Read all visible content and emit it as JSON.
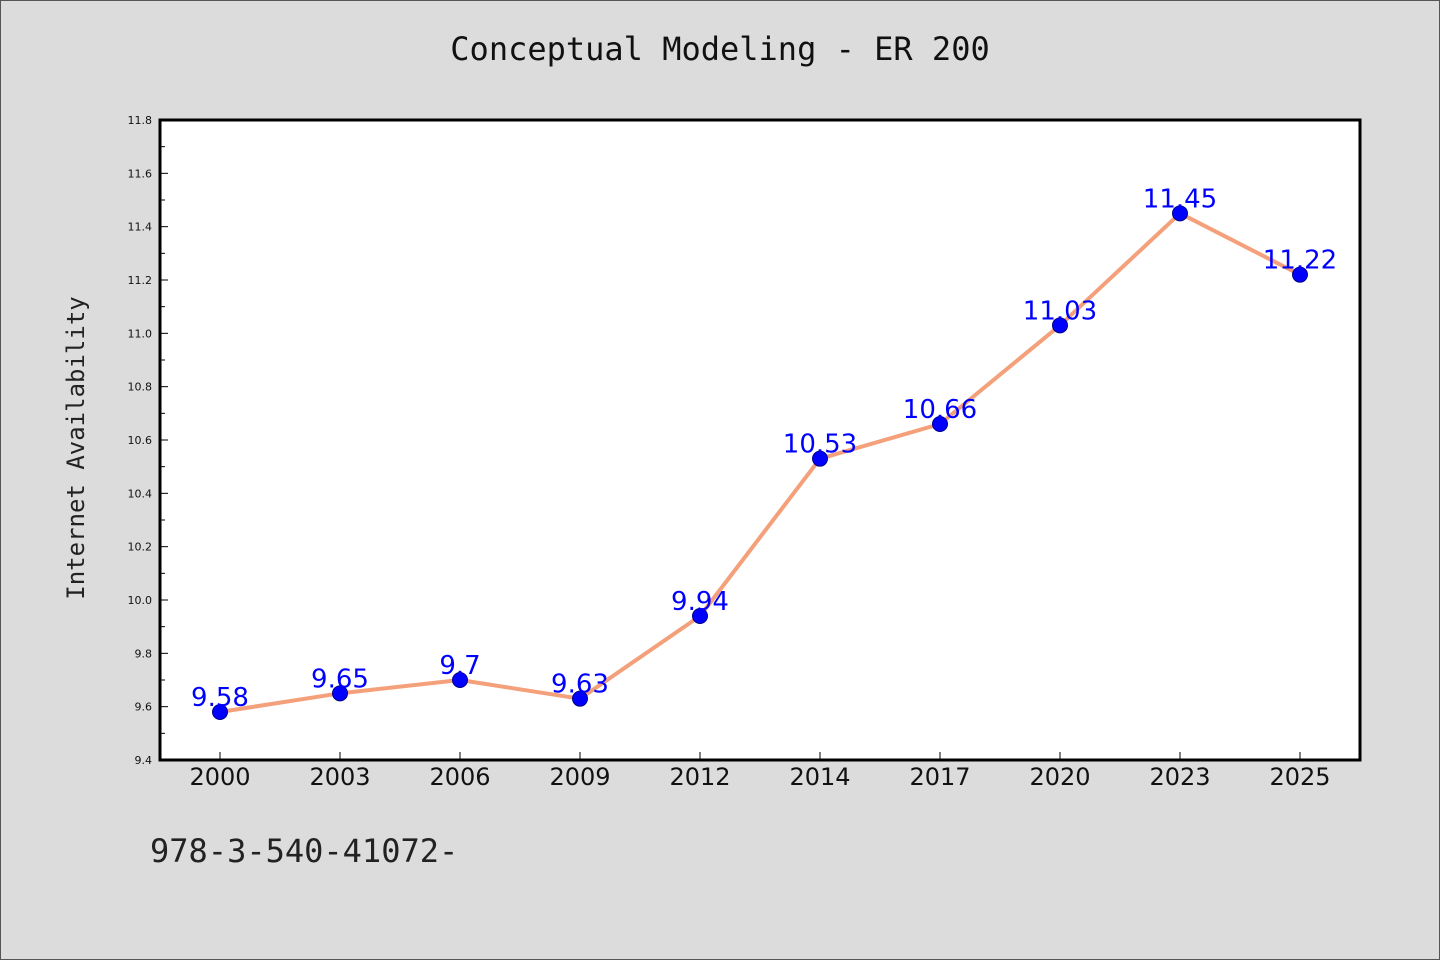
{
  "chart_data": {
    "type": "line",
    "title": "Conceptual Modeling - ER 200",
    "xlabel": "",
    "ylabel": "Internet Availability",
    "categories": [
      "2000",
      "2003",
      "2006",
      "2009",
      "2012",
      "2014",
      "2017",
      "2020",
      "2023",
      "2025"
    ],
    "series": [
      {
        "values": [
          9.58,
          9.65,
          9.7,
          9.63,
          9.94,
          10.53,
          10.66,
          11.03,
          11.45,
          11.22
        ],
        "data_labels": [
          "9.58",
          "9.65",
          "9.7",
          "9.63",
          "9.94",
          "10.53",
          "10.66",
          "11.03",
          "11.45",
          "11.22"
        ]
      }
    ],
    "ylim": [
      9.4,
      11.8
    ],
    "yticks": [
      "9.4",
      "9.6",
      "9.8",
      "10.0",
      "10.2",
      "10.4",
      "10.6",
      "10.8",
      "11.0",
      "11.2",
      "11.4",
      "11.6",
      "11.8"
    ],
    "grid": false,
    "legend": "none",
    "colors": {
      "line": "#f4a07a",
      "marker": "#0000ff",
      "data_label": "#0000ff",
      "background": "#dcdcdc",
      "plot_background": "#ffffff"
    }
  },
  "footnote": "978-3-540-41072-"
}
